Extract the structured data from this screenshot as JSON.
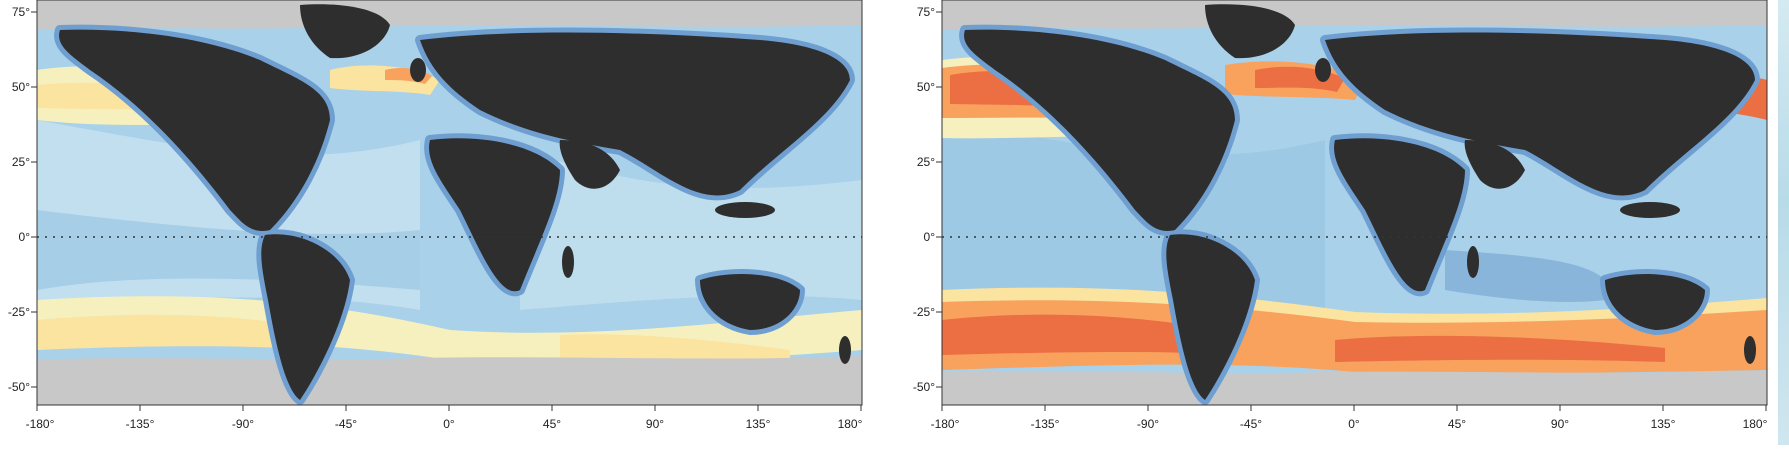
{
  "colors": {
    "land": "#2e2e2e",
    "ice": "#c8c8c8",
    "ocean_shelf": "#6f9fd0",
    "ocean_deep": "#8fbfe0",
    "ocean_mid": "#a9d1e9",
    "ocean_light": "#cde6f1",
    "pale_yellow": "#f6f0bf",
    "yellow": "#fbe3a0",
    "orange": "#f8a25d",
    "red_orange": "#ec6e43",
    "red": "#d6382c"
  },
  "maps": [
    {
      "x_ticks": [
        "-180°",
        "-135°",
        "-90°",
        "-45°",
        "0°",
        "45°",
        "90°",
        "135°",
        "180°"
      ],
      "y_ticks": [
        "75°",
        "50°",
        "25°",
        "0°",
        "-25°",
        "-50°"
      ]
    },
    {
      "x_ticks": [
        "-180°",
        "-135°",
        "-90°",
        "-45°",
        "0°",
        "45°",
        "90°",
        "135°",
        "180°"
      ],
      "y_ticks": [
        "75°",
        "50°",
        "25°",
        "0°",
        "-25°",
        "-50°"
      ]
    }
  ]
}
